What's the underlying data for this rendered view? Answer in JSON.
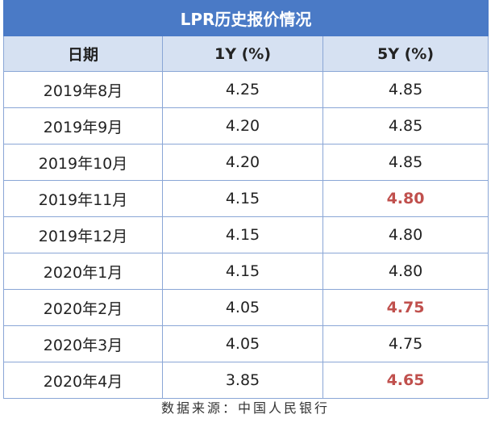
{
  "title": "LPR历史报价情况",
  "headers": [
    "日期",
    "1Y (%)",
    "5Y (%)"
  ],
  "rows": [
    {
      "date": "2019年8月",
      "y1": "4.25",
      "y5": "4.85",
      "y5_highlight": false
    },
    {
      "date": "2019年9月",
      "y1": "4.20",
      "y5": "4.85",
      "y5_highlight": false
    },
    {
      "date": "2019年10月",
      "y1": "4.20",
      "y5": "4.85",
      "y5_highlight": false
    },
    {
      "date": "2019年11月",
      "y1": "4.15",
      "y5": "4.80",
      "y5_highlight": true
    },
    {
      "date": "2019年12月",
      "y1": "4.15",
      "y5": "4.80",
      "y5_highlight": false
    },
    {
      "date": "2020年1月",
      "y1": "4.15",
      "y5": "4.80",
      "y5_highlight": false
    },
    {
      "date": "2020年2月",
      "y1": "4.05",
      "y5": "4.75",
      "y5_highlight": true
    },
    {
      "date": "2020年3月",
      "y1": "4.05",
      "y5": "4.75",
      "y5_highlight": false
    },
    {
      "date": "2020年4月",
      "y1": "3.85",
      "y5": "4.65",
      "y5_highlight": true
    }
  ],
  "source": "数据来源：中国人民银行",
  "colors": {
    "title_bg": "#4a7ac6",
    "header_bg": "#d6e1f2",
    "border": "#8aa6d6",
    "highlight": "#c0504d"
  }
}
